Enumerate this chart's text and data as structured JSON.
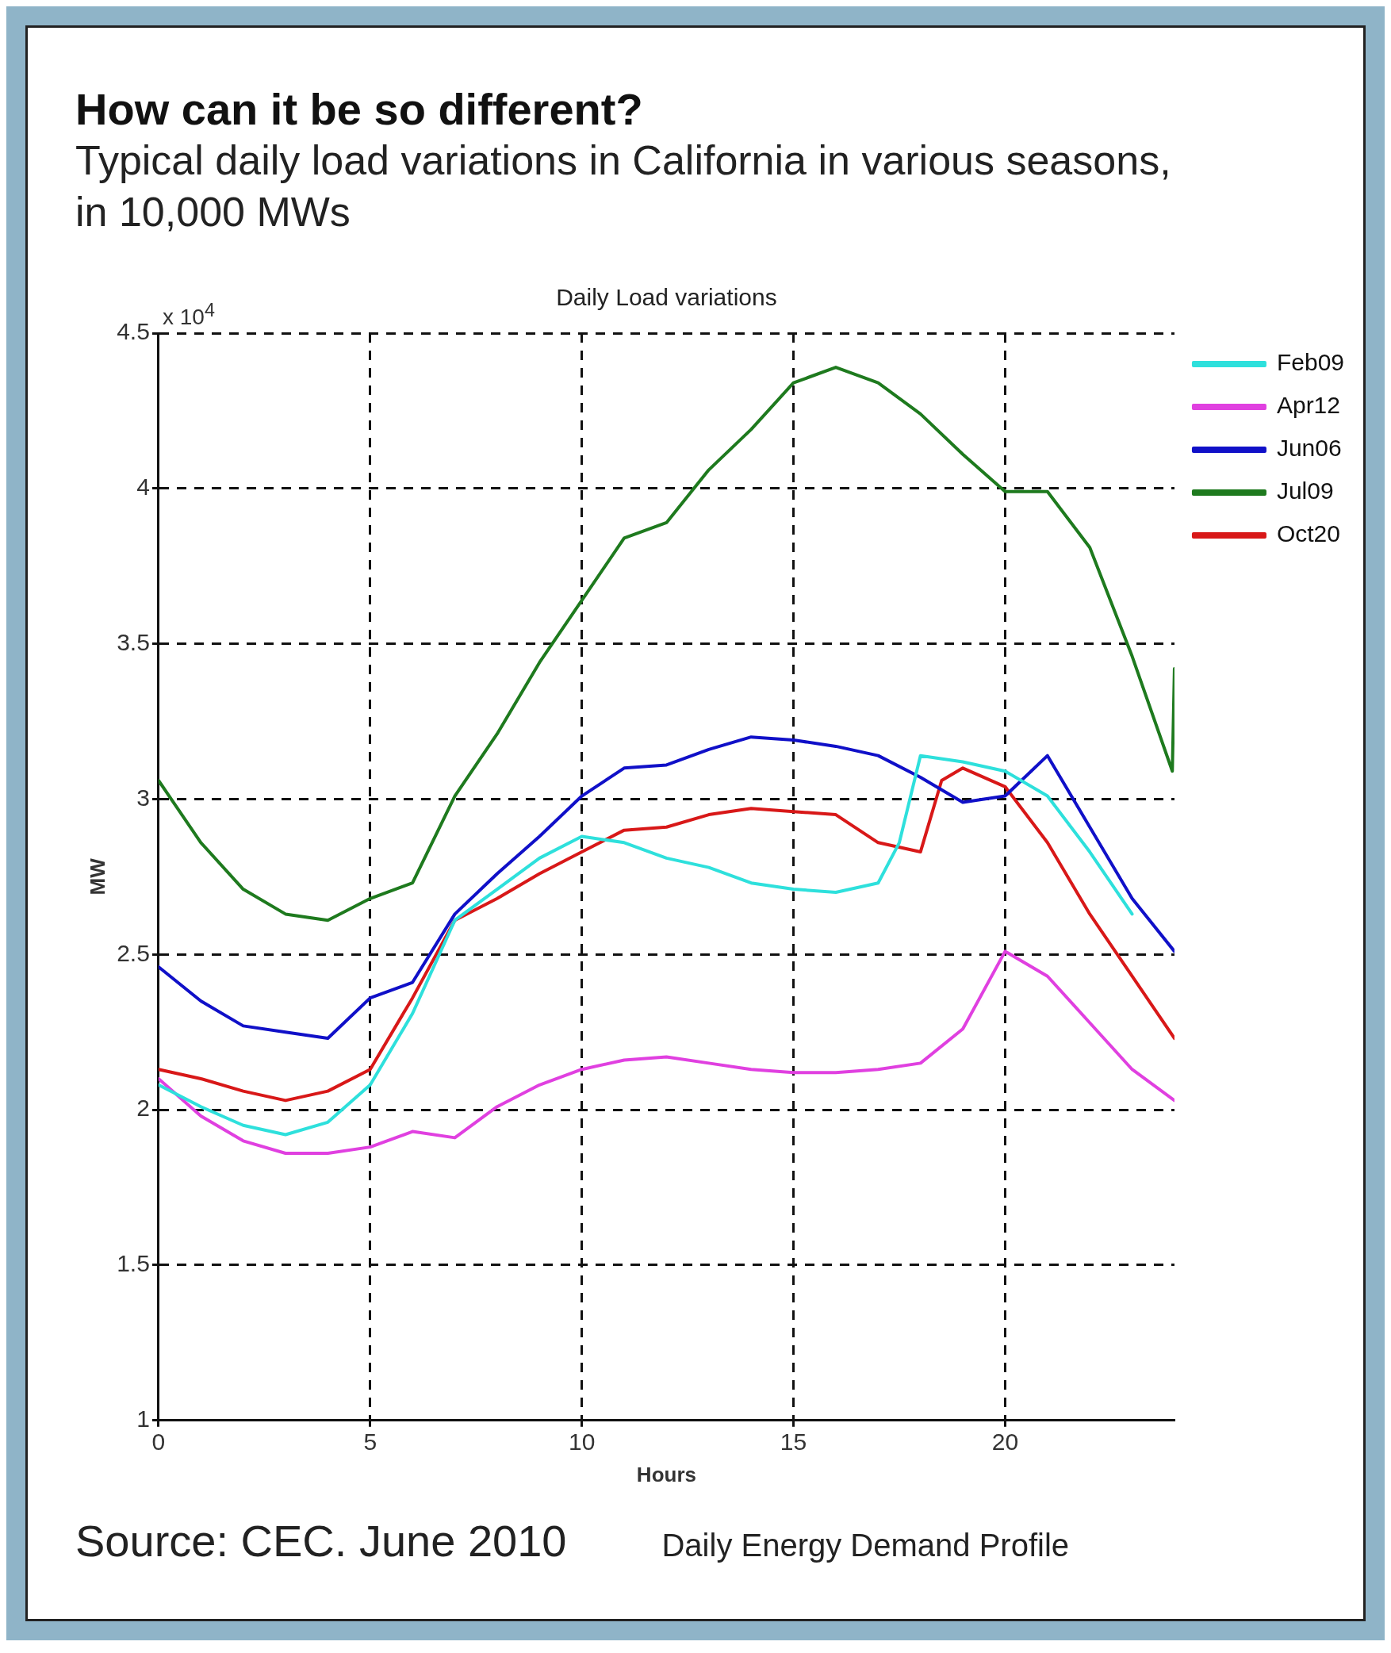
{
  "chart_data": {
    "type": "line",
    "title": "How can it be so different?",
    "subtitle": "Typical daily load variations in California in various seasons, in 10,000 MWs",
    "xlabel": "Hours",
    "ylabel": "MW",
    "annotations": [
      "Daily Load variations",
      "x 10$^{4}$",
      "Source: CEC. June 2010",
      "Daily Energy Demand Profile"
    ],
    "xlim": [
      0,
      24
    ],
    "xticks": [
      0,
      5,
      10,
      15,
      20
    ],
    "ylim": [
      1,
      4.5
    ],
    "yticks": [
      1,
      1.5,
      2,
      2.5,
      3,
      3.5,
      4,
      4.5
    ],
    "grid": true,
    "legend": "top right",
    "line_style": "solid",
    "marker": "none",
    "series": [
      {
        "name": "Feb09",
        "color": "#2ee0dc",
        "x": [
          0,
          1,
          2,
          3,
          4,
          5,
          6,
          7,
          8,
          9,
          10,
          11,
          12,
          13,
          14,
          15,
          16,
          17,
          17.5,
          18,
          19,
          20,
          21,
          22,
          23
        ],
        "values": [
          2.08,
          2.01,
          1.95,
          1.92,
          1.96,
          2.08,
          2.31,
          2.61,
          2.71,
          2.81,
          2.88,
          2.86,
          2.81,
          2.78,
          2.73,
          2.71,
          2.7,
          2.73,
          2.86,
          3.14,
          3.12,
          3.09,
          3.01,
          2.83,
          2.63
        ]
      },
      {
        "name": "Apr12",
        "color": "#e040e0",
        "x": [
          0,
          1,
          2,
          3,
          4,
          5,
          6,
          7,
          8,
          9,
          10,
          11,
          12,
          13,
          14,
          15,
          16,
          17,
          18,
          19,
          20,
          21,
          22,
          23,
          24
        ],
        "values": [
          2.1,
          1.98,
          1.9,
          1.86,
          1.86,
          1.88,
          1.93,
          1.91,
          2.01,
          2.08,
          2.13,
          2.16,
          2.17,
          2.15,
          2.13,
          2.12,
          2.12,
          2.13,
          2.15,
          2.26,
          2.51,
          2.43,
          2.28,
          2.13,
          2.03
        ]
      },
      {
        "name": "Jun06",
        "color": "#1010c8",
        "x": [
          0,
          1,
          2,
          3,
          4,
          5,
          6,
          7,
          8,
          9,
          10,
          11,
          12,
          13,
          14,
          15,
          16,
          17,
          18,
          19,
          20,
          21,
          22,
          23,
          24
        ],
        "values": [
          2.46,
          2.35,
          2.27,
          2.25,
          2.23,
          2.36,
          2.41,
          2.63,
          2.76,
          2.88,
          3.01,
          3.1,
          3.11,
          3.16,
          3.2,
          3.19,
          3.17,
          3.14,
          3.07,
          2.99,
          3.01,
          3.14,
          2.91,
          2.68,
          2.51
        ]
      },
      {
        "name": "Jul09",
        "color": "#1e7a1e",
        "x": [
          0,
          1,
          2,
          3,
          4,
          5,
          6,
          7,
          8,
          9,
          10,
          11,
          12,
          13,
          14,
          15,
          16,
          17,
          18,
          19,
          20,
          21,
          22,
          23,
          23.95,
          24
        ],
        "values": [
          3.06,
          2.86,
          2.71,
          2.63,
          2.61,
          2.68,
          2.73,
          3.01,
          3.21,
          3.44,
          3.64,
          3.84,
          3.89,
          4.06,
          4.19,
          4.34,
          4.39,
          4.34,
          4.24,
          4.11,
          3.99,
          3.99,
          3.81,
          3.46,
          3.09,
          3.42
        ]
      },
      {
        "name": "Oct20",
        "color": "#d81818",
        "x": [
          0,
          1,
          2,
          3,
          4,
          5,
          6,
          7,
          8,
          9,
          10,
          11,
          12,
          13,
          14,
          15,
          16,
          17,
          18,
          18.5,
          19,
          20,
          21,
          22,
          23,
          24
        ],
        "values": [
          2.13,
          2.1,
          2.06,
          2.03,
          2.06,
          2.13,
          2.36,
          2.61,
          2.68,
          2.76,
          2.83,
          2.9,
          2.91,
          2.95,
          2.97,
          2.96,
          2.95,
          2.86,
          2.83,
          3.06,
          3.1,
          3.04,
          2.86,
          2.63,
          2.43,
          2.23
        ]
      }
    ]
  }
}
